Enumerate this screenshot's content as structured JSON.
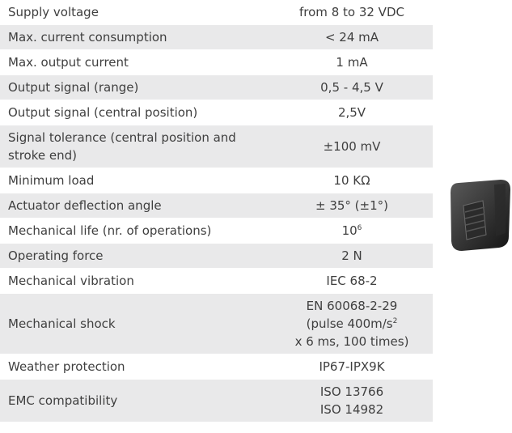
{
  "table": {
    "rows": [
      {
        "label": "Supply voltage",
        "value": [
          "from 8 to 32 VDC"
        ]
      },
      {
        "label": "Max. current consumption",
        "value": [
          "< 24 mA"
        ]
      },
      {
        "label": "Max. output current",
        "value": [
          "1 mA"
        ]
      },
      {
        "label": "Output signal (range)",
        "value": [
          "0,5 - 4,5 V"
        ]
      },
      {
        "label": "Output signal (central position)",
        "value": [
          "2,5V"
        ]
      },
      {
        "label": "Signal tolerance (central position and stroke end)",
        "value": [
          "±100 mV"
        ]
      },
      {
        "label": "Minimum load",
        "value": [
          "10 KΩ"
        ]
      },
      {
        "label": "Actuator deflection angle",
        "value": [
          "± 35° (±1°)"
        ]
      },
      {
        "label": "Mechanical life (nr. of operations)",
        "value": [
          {
            "text": "10",
            "sup": "6"
          }
        ]
      },
      {
        "label": "Operating force",
        "value": [
          "2 N"
        ]
      },
      {
        "label": "Mechanical vibration",
        "value": [
          "IEC 68-2"
        ]
      },
      {
        "label": "Mechanical shock",
        "value": [
          "EN 60068-2-29",
          {
            "text": "(pulse 400m/s",
            "sup": "2"
          },
          "x 6 ms, 100 times)"
        ]
      },
      {
        "label": "Weather protection",
        "value": [
          "IP67-IPX9K"
        ]
      },
      {
        "label": "EMC compatibility",
        "value": [
          "ISO 13766",
          "ISO 14982"
        ]
      }
    ]
  }
}
